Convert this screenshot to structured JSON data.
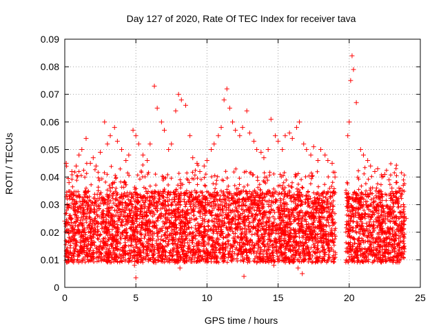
{
  "chart_data": {
    "type": "scatter",
    "title": "Day 127 of 2020, Rate Of TEC Index for receiver tava",
    "xlabel": "GPS time / hours",
    "ylabel": "ROTI / TECUs",
    "xlim": [
      0,
      25
    ],
    "ylim": [
      0,
      0.09
    ],
    "x_ticks": [
      "0",
      "5",
      "10",
      "15",
      "20",
      "25"
    ],
    "y_ticks": [
      "0",
      "0.01",
      "0.02",
      "0.03",
      "0.04",
      "0.05",
      "0.06",
      "0.07",
      "0.08",
      "0.09"
    ],
    "grid": true,
    "legend": "none",
    "marker": "plus",
    "color": "#ff0000",
    "series": [
      {
        "x": [
          0.1,
          0.3,
          0.5,
          0.8,
          1.0,
          1.2,
          1.5,
          1.8,
          2.0,
          2.2,
          2.5,
          2.8,
          3.0,
          3.2,
          3.5,
          3.7,
          4.0,
          4.3,
          4.5,
          4.8,
          5.0,
          5.2,
          5.5,
          5.8,
          6.0,
          6.3,
          6.5,
          6.8,
          7.0,
          7.3,
          7.5,
          7.8,
          8.0,
          8.2,
          8.5,
          8.8,
          9.0,
          9.3,
          9.5,
          9.8,
          10.0,
          10.3,
          10.5,
          10.8,
          11.0,
          11.2,
          11.4,
          11.6,
          11.8,
          12.0,
          12.3,
          12.5,
          12.8,
          13.0,
          13.3,
          13.5,
          13.8,
          14.0,
          14.3,
          14.5,
          14.8,
          15.0,
          15.3,
          15.5,
          15.8,
          16.0,
          16.3,
          16.5,
          16.8,
          17.0,
          17.3,
          17.5,
          17.8,
          18.0,
          18.3,
          18.5,
          18.8,
          19.0,
          19.9,
          20.0,
          20.1,
          20.2,
          20.3,
          20.5,
          20.8,
          21.0,
          21.3,
          21.5,
          21.8,
          22.0,
          22.3,
          22.5,
          22.8,
          23.0,
          23.3,
          23.5,
          23.8,
          0.4,
          1.6,
          2.9,
          3.6,
          4.9,
          6.4,
          7.9,
          8.1,
          11.5,
          12.5,
          13.5,
          14.7,
          16.4,
          20.2,
          5.0,
          12.6,
          16.7,
          0.0,
          24.0
        ],
        "y": [
          0.045,
          0.038,
          0.042,
          0.044,
          0.048,
          0.05,
          0.054,
          0.045,
          0.047,
          0.044,
          0.049,
          0.06,
          0.052,
          0.055,
          0.058,
          0.053,
          0.05,
          0.046,
          0.048,
          0.057,
          0.055,
          0.052,
          0.048,
          0.046,
          0.052,
          0.073,
          0.065,
          0.06,
          0.057,
          0.05,
          0.052,
          0.064,
          0.07,
          0.068,
          0.066,
          0.055,
          0.047,
          0.045,
          0.042,
          0.044,
          0.046,
          0.05,
          0.052,
          0.055,
          0.058,
          0.068,
          0.072,
          0.065,
          0.06,
          0.057,
          0.055,
          0.058,
          0.064,
          0.056,
          0.053,
          0.05,
          0.049,
          0.047,
          0.05,
          0.061,
          0.055,
          0.053,
          0.05,
          0.055,
          0.056,
          0.054,
          0.058,
          0.06,
          0.052,
          0.05,
          0.048,
          0.051,
          0.046,
          0.05,
          0.048,
          0.046,
          0.045,
          0.04,
          0.055,
          0.06,
          0.075,
          0.084,
          0.079,
          0.067,
          0.05,
          0.048,
          0.046,
          0.044,
          0.042,
          0.043,
          0.04,
          0.041,
          0.039,
          0.036,
          0.038,
          0.036,
          0.037,
          0.01,
          0.012,
          0.01,
          0.011,
          0.008,
          0.009,
          0.01,
          0.007,
          0.012,
          0.011,
          0.009,
          0.008,
          0.007,
          0.01,
          0.0035,
          0.004,
          0.005,
          0.024,
          0.025
        ]
      }
    ]
  }
}
